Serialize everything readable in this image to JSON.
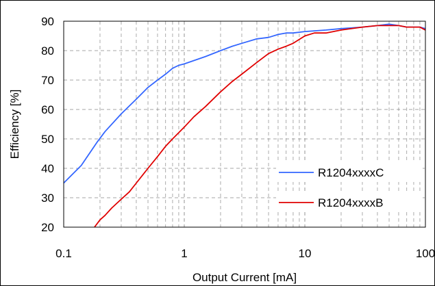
{
  "chart_data": {
    "type": "line",
    "title": "",
    "xlabel": "Output Current [mA]",
    "ylabel": "Efficiency [%]",
    "x_scale": "log",
    "xlim": [
      0.1,
      100
    ],
    "ylim": [
      20,
      90
    ],
    "x_ticks": [
      "0.1",
      "1",
      "10",
      "100"
    ],
    "y_ticks": [
      "20",
      "30",
      "40",
      "50",
      "60",
      "70",
      "80",
      "90"
    ],
    "grid": "dashed, major and minor",
    "legend_position": "bottom-right",
    "series": [
      {
        "name": "R1204xxxxC",
        "color": "#3366ff",
        "points": [
          [
            0.1,
            35
          ],
          [
            0.14,
            41
          ],
          [
            0.19,
            49
          ],
          [
            0.22,
            52.5
          ],
          [
            0.3,
            58.5
          ],
          [
            0.4,
            63.5
          ],
          [
            0.5,
            67.5
          ],
          [
            0.6,
            70
          ],
          [
            0.7,
            72
          ],
          [
            0.8,
            74
          ],
          [
            0.9,
            75
          ],
          [
            1.0,
            75.5
          ],
          [
            1.5,
            78
          ],
          [
            2,
            80
          ],
          [
            2.5,
            81.5
          ],
          [
            3,
            82.5
          ],
          [
            4,
            84
          ],
          [
            5,
            84.5
          ],
          [
            6,
            85.5
          ],
          [
            7,
            86
          ],
          [
            8,
            86
          ],
          [
            10,
            86.5
          ],
          [
            15,
            87
          ],
          [
            20,
            87.5
          ],
          [
            30,
            88
          ],
          [
            40,
            88.5
          ],
          [
            50,
            89
          ],
          [
            60,
            88.5
          ],
          [
            70,
            88
          ],
          [
            80,
            88
          ],
          [
            90,
            88
          ],
          [
            100,
            87.5
          ]
        ]
      },
      {
        "name": "R1204xxxxB",
        "color": "#e00000",
        "points": [
          [
            0.18,
            20
          ],
          [
            0.2,
            22.5
          ],
          [
            0.22,
            24
          ],
          [
            0.25,
            26.5
          ],
          [
            0.3,
            29.5
          ],
          [
            0.35,
            32
          ],
          [
            0.4,
            35
          ],
          [
            0.5,
            40
          ],
          [
            0.6,
            44
          ],
          [
            0.7,
            47.5
          ],
          [
            0.8,
            50
          ],
          [
            1.0,
            54
          ],
          [
            1.2,
            57.5
          ],
          [
            1.5,
            61
          ],
          [
            2,
            66
          ],
          [
            2.5,
            69.5
          ],
          [
            3,
            72
          ],
          [
            4,
            76
          ],
          [
            5,
            79
          ],
          [
            6,
            80.5
          ],
          [
            7,
            81.5
          ],
          [
            8,
            82.5
          ],
          [
            10,
            85
          ],
          [
            12,
            86
          ],
          [
            15,
            86
          ],
          [
            20,
            87
          ],
          [
            30,
            88
          ],
          [
            40,
            88.5
          ],
          [
            50,
            88.5
          ],
          [
            60,
            88.5
          ],
          [
            70,
            88
          ],
          [
            80,
            88
          ],
          [
            90,
            88
          ],
          [
            100,
            87
          ]
        ]
      }
    ]
  }
}
